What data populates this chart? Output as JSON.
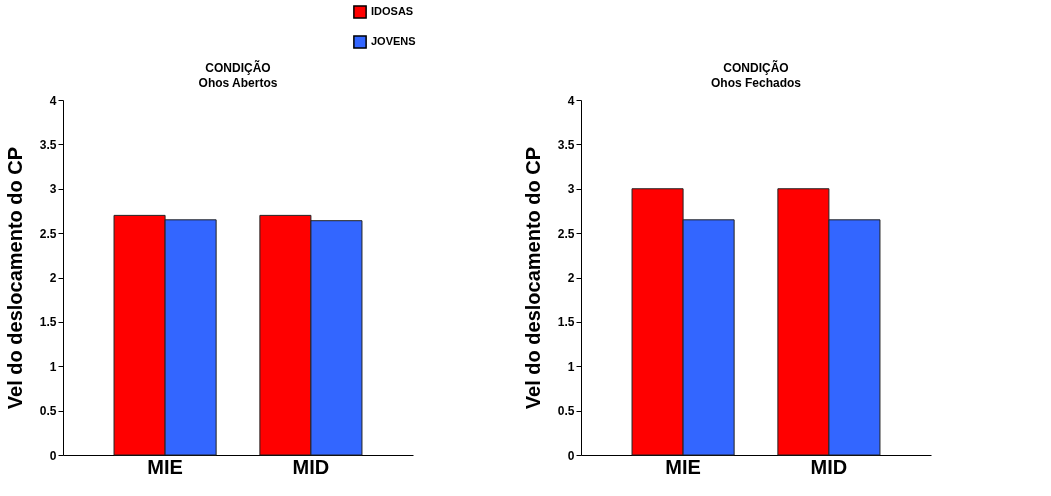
{
  "chart_data": [
    {
      "type": "bar",
      "title": "CONDIÇÃO",
      "subtitle": "Ohos Abertos",
      "ylabel": "Vel do deslocamento do CP",
      "categories": [
        "MIE",
        "MID"
      ],
      "series": [
        {
          "name": "IDOSAS",
          "color": "#ff0000",
          "values": [
            2.7,
            2.7
          ]
        },
        {
          "name": "JOVENS",
          "color": "#3366ff",
          "values": [
            2.65,
            2.64
          ]
        }
      ],
      "ylim": [
        0,
        4
      ],
      "yticks": [
        0,
        0.5,
        1,
        1.5,
        2,
        2.5,
        3,
        3.5,
        4
      ],
      "grid": false,
      "legend": "top right"
    },
    {
      "type": "bar",
      "title": "CONDIÇÃO",
      "subtitle": "Ohos Fechados",
      "ylabel": "Vel do deslocamento do CP",
      "categories": [
        "MIE",
        "MID"
      ],
      "series": [
        {
          "name": "IDOSAS",
          "color": "#ff0000",
          "values": [
            3.0,
            3.0
          ]
        },
        {
          "name": "JOVENS",
          "color": "#3366ff",
          "values": [
            2.65,
            2.65
          ]
        }
      ],
      "ylim": [
        0,
        4
      ],
      "yticks": [
        0,
        0.5,
        1,
        1.5,
        2,
        2.5,
        3,
        3.5,
        4
      ],
      "grid": false,
      "legend": "top right"
    }
  ]
}
